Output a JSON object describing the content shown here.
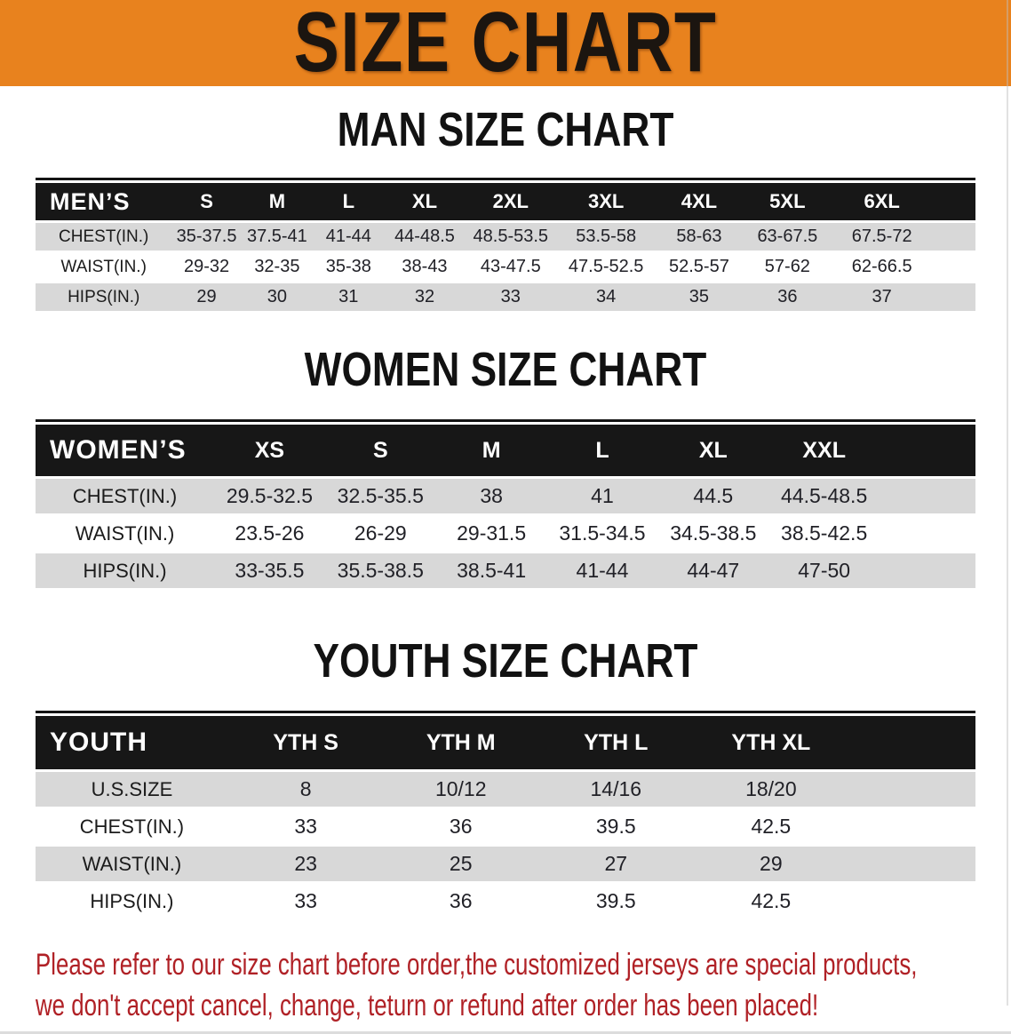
{
  "banner": {
    "title": "SIZE CHART"
  },
  "sections": [
    {
      "id": "men",
      "title": "MAN SIZE CHART",
      "header_label": "MEN’S",
      "columns": [
        "S",
        "M",
        "L",
        "XL",
        "2XL",
        "3XL",
        "4XL",
        "5XL",
        "6XL"
      ],
      "rows": [
        {
          "label": "CHEST(IN.)",
          "values": [
            "35-37.5",
            "37.5-41",
            "41-44",
            "44-48.5",
            "48.5-53.5",
            "53.5-58",
            "58-63",
            "63-67.5",
            "67.5-72"
          ]
        },
        {
          "label": "WAIST(IN.)",
          "values": [
            "29-32",
            "32-35",
            "35-38",
            "38-43",
            "43-47.5",
            "47.5-52.5",
            "52.5-57",
            "57-62",
            "62-66.5"
          ]
        },
        {
          "label": "HIPS(IN.)",
          "values": [
            "29",
            "30",
            "31",
            "32",
            "33",
            "34",
            "35",
            "36",
            "37"
          ]
        }
      ]
    },
    {
      "id": "women",
      "title": "WOMEN SIZE CHART",
      "header_label": "WOMEN’S",
      "columns": [
        "XS",
        "S",
        "M",
        "L",
        "XL",
        "XXL"
      ],
      "rows": [
        {
          "label": "CHEST(IN.)",
          "values": [
            "29.5-32.5",
            "32.5-35.5",
            "38",
            "41",
            "44.5",
            "44.5-48.5"
          ]
        },
        {
          "label": "WAIST(IN.)",
          "values": [
            "23.5-26",
            "26-29",
            "29-31.5",
            "31.5-34.5",
            "34.5-38.5",
            "38.5-42.5"
          ]
        },
        {
          "label": "HIPS(IN.)",
          "values": [
            "33-35.5",
            "35.5-38.5",
            "38.5-41",
            "41-44",
            "44-47",
            "47-50"
          ]
        }
      ]
    },
    {
      "id": "youth",
      "title": "YOUTH SIZE CHART",
      "header_label": "YOUTH",
      "columns": [
        "YTH S",
        "YTH M",
        "YTH L",
        "YTH XL"
      ],
      "rows": [
        {
          "label": "U.S.SIZE",
          "values": [
            "8",
            "10/12",
            "14/16",
            "18/20"
          ]
        },
        {
          "label": "CHEST(IN.)",
          "values": [
            "33",
            "36",
            "39.5",
            "42.5"
          ]
        },
        {
          "label": "WAIST(IN.)",
          "values": [
            "23",
            "25",
            "27",
            "29"
          ]
        },
        {
          "label": "HIPS(IN.)",
          "values": [
            "33",
            "36",
            "39.5",
            "42.5"
          ]
        }
      ]
    }
  ],
  "disclaimer": {
    "line1": "Please refer to our size chart before order,the customized jerseys are special products,",
    "line2": "we don't accept cancel, change, teturn or refund after order has been placed!"
  },
  "colors": {
    "banner_bg": "#E8821E",
    "header_band_bg": "#171717",
    "alt_row_bg": "#D8D8D8",
    "disclaimer_red": "#B02126"
  }
}
